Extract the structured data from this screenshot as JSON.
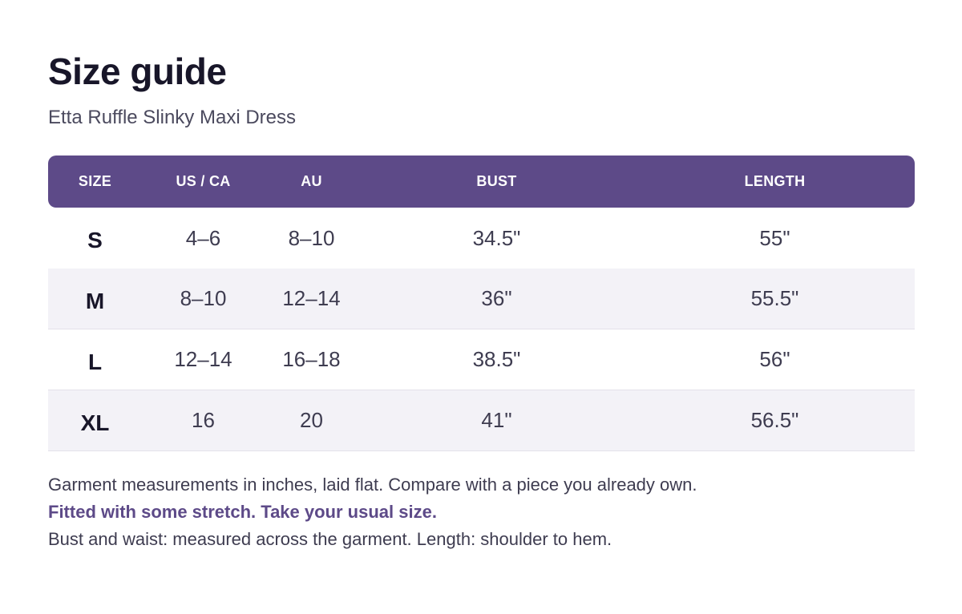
{
  "header": {
    "title": "Size guide",
    "subtitle": "Etta Ruffle Slinky Maxi Dress"
  },
  "table": {
    "columns": [
      "SIZE",
      "US / CA",
      "AU",
      "BUST",
      "LENGTH"
    ],
    "rows": [
      {
        "size": "S",
        "us_ca": "4–6",
        "au": "8–10",
        "bust": "34.5\"",
        "length": "55\""
      },
      {
        "size": "M",
        "us_ca": "8–10",
        "au": "12–14",
        "bust": "36\"",
        "length": "55.5\""
      },
      {
        "size": "L",
        "us_ca": "12–14",
        "au": "16–18",
        "bust": "38.5\"",
        "length": "56\""
      },
      {
        "size": "XL",
        "us_ca": "16",
        "au": "20",
        "bust": "41\"",
        "length": "56.5\""
      }
    ]
  },
  "notes": {
    "measurements": "Garment measurements in inches, laid flat. Compare with a piece you already own.",
    "fit": "Fitted with some stretch. Take your usual size.",
    "definitions": "Bust and waist: measured across the garment.  Length: shoulder to hem."
  },
  "colors": {
    "accent": "#5d4a88",
    "title": "#181629",
    "text": "#3e3c50",
    "alt_row": "#f3f2f7"
  }
}
